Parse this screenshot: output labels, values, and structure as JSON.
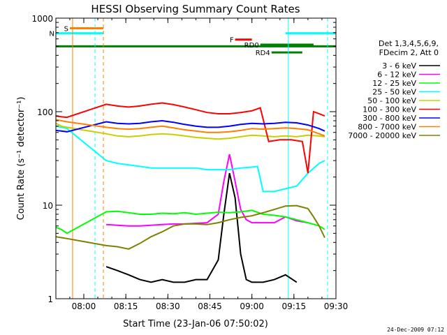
{
  "chart_data": {
    "type": "line",
    "title": "HESSI Observing Summary Count Rates",
    "xlabel": "Start Time (23-Jan-06 07:50:02)",
    "ylabel": "Count Rate (s⁻¹ detector⁻¹)",
    "y_scale": "log",
    "ylim": [
      1,
      1000
    ],
    "xlim": [
      "07:50:02",
      "09:30:00"
    ],
    "x_ticks": [
      "08:00",
      "08:15",
      "08:30",
      "08:45",
      "09:00",
      "09:15",
      "09:30"
    ],
    "y_ticks": [
      "1",
      "10",
      "100",
      "1000"
    ],
    "date_stamp": "24-Dec-2009 07:12",
    "legend": {
      "position": "right",
      "header_line1": "Det 1,3,4,5,6,9,",
      "header_line2": "FDecim 2, Att 0"
    },
    "series": [
      {
        "name": "3 - 6 keV",
        "color": "#000000",
        "x": [
          "08:08",
          "08:12",
          "08:16",
          "08:20",
          "08:24",
          "08:28",
          "08:32",
          "08:36",
          "08:40",
          "08:44",
          "08:48",
          "08:50",
          "08:52",
          "08:54",
          "08:56",
          "08:58",
          "09:00",
          "09:04",
          "09:08",
          "09:12",
          "09:16"
        ],
        "y": [
          2.2,
          2.0,
          1.8,
          1.6,
          1.5,
          1.6,
          1.5,
          1.5,
          1.6,
          1.6,
          2.6,
          8,
          22,
          12,
          3,
          1.6,
          1.5,
          1.5,
          1.6,
          1.8,
          1.5
        ]
      },
      {
        "name": "6 - 12 keV",
        "color": "#ff00ff",
        "x": [
          "08:08",
          "08:12",
          "08:16",
          "08:20",
          "08:24",
          "08:28",
          "08:32",
          "08:36",
          "08:40",
          "08:44",
          "08:48",
          "08:50",
          "08:52",
          "08:54",
          "08:56",
          "08:58",
          "09:00",
          "09:04",
          "09:08",
          "09:12",
          "09:16",
          "09:20"
        ],
        "y": [
          6.2,
          6.1,
          6.0,
          6.0,
          6.1,
          6.2,
          6.3,
          6.3,
          6.4,
          6.5,
          8,
          18,
          35,
          18,
          9,
          7,
          6.5,
          6.5,
          6.5,
          7.5,
          6.8,
          6.5
        ]
      },
      {
        "name": "12 - 25 keV",
        "color": "#00ff00",
        "x": [
          "07:50",
          "07:52",
          "07:54",
          "08:08",
          "08:12",
          "08:16",
          "08:20",
          "08:24",
          "08:28",
          "08:32",
          "08:36",
          "08:40",
          "08:44",
          "08:48",
          "08:52",
          "08:56",
          "09:00",
          "09:04",
          "09:08",
          "09:12",
          "09:16",
          "09:20",
          "09:24",
          "09:26"
        ],
        "y": [
          5.8,
          5.5,
          5.0,
          8.5,
          8.6,
          8.3,
          8.0,
          8.0,
          8.2,
          8.1,
          8.3,
          8.0,
          8.2,
          8.4,
          8.3,
          8.5,
          8.8,
          8.0,
          7.8,
          7.5,
          7.0,
          6.5,
          6.0,
          5.5
        ]
      },
      {
        "name": "25 - 50 keV",
        "color": "#00ffff",
        "x": [
          "07:50",
          "07:52",
          "07:54",
          "08:08",
          "08:12",
          "08:16",
          "08:20",
          "08:24",
          "08:28",
          "08:32",
          "08:36",
          "08:40",
          "08:44",
          "08:48",
          "08:52",
          "08:56",
          "09:00",
          "09:02",
          "09:04",
          "09:08",
          "09:12",
          "09:16",
          "09:20",
          "09:24",
          "09:26"
        ],
        "y": [
          70,
          68,
          66,
          30,
          28,
          27,
          26,
          25,
          25,
          25,
          25,
          25,
          24,
          24,
          24,
          25,
          25.5,
          26,
          14,
          14,
          15,
          16,
          22,
          28,
          30
        ]
      },
      {
        "name": "50 - 100 keV",
        "color": "#cccc00",
        "x": [
          "07:50",
          "07:52",
          "07:54",
          "08:08",
          "08:12",
          "08:16",
          "08:20",
          "08:24",
          "08:28",
          "08:32",
          "08:36",
          "08:40",
          "08:44",
          "08:48",
          "08:52",
          "08:56",
          "09:00",
          "09:04",
          "09:08",
          "09:12",
          "09:16",
          "09:20",
          "09:24",
          "09:26"
        ],
        "y": [
          75,
          70,
          68,
          58,
          55,
          54,
          55,
          57,
          58,
          57,
          55,
          53,
          52,
          51,
          52,
          54,
          56,
          55,
          54,
          55,
          54,
          56,
          55,
          54
        ]
      },
      {
        "name": "100 - 300 keV",
        "color": "#ff0000",
        "x": [
          "07:50",
          "07:52",
          "07:54",
          "08:08",
          "08:12",
          "08:16",
          "08:20",
          "08:24",
          "08:28",
          "08:32",
          "08:36",
          "08:40",
          "08:44",
          "08:48",
          "08:52",
          "08:56",
          "09:00",
          "09:03",
          "09:06",
          "09:10",
          "09:14",
          "09:18",
          "09:20",
          "09:22",
          "09:26"
        ],
        "y": [
          90,
          88,
          87,
          120,
          115,
          112,
          115,
          120,
          124,
          119,
          112,
          105,
          98,
          95,
          95,
          98,
          102,
          110,
          48,
          50,
          50,
          48,
          22,
          100,
          90
        ]
      },
      {
        "name": "300 - 800 keV",
        "color": "#0000ff",
        "x": [
          "07:50",
          "07:52",
          "07:54",
          "08:08",
          "08:12",
          "08:16",
          "08:20",
          "08:24",
          "08:28",
          "08:32",
          "08:36",
          "08:40",
          "08:44",
          "08:48",
          "08:52",
          "08:56",
          "09:00",
          "09:04",
          "09:08",
          "09:12",
          "09:16",
          "09:20",
          "09:24",
          "09:26"
        ],
        "y": [
          63,
          62,
          61,
          78,
          75,
          74,
          75,
          78,
          80,
          77,
          73,
          70,
          68,
          68,
          70,
          73,
          75,
          74,
          75,
          77,
          76,
          72,
          66,
          62
        ]
      },
      {
        "name": "800 - 7000 keV",
        "color": "#ff8000",
        "x": [
          "07:50",
          "07:52",
          "07:54",
          "08:08",
          "08:12",
          "08:16",
          "08:20",
          "08:24",
          "08:28",
          "08:32",
          "08:36",
          "08:40",
          "08:44",
          "08:48",
          "08:52",
          "08:56",
          "09:00",
          "09:04",
          "09:08",
          "09:12",
          "09:16",
          "09:20",
          "09:24",
          "09:26"
        ],
        "y": [
          82,
          80,
          78,
          68,
          66,
          65,
          66,
          68,
          70,
          67,
          64,
          62,
          60,
          60,
          61,
          63,
          66,
          65,
          66,
          67,
          66,
          64,
          58,
          55
        ]
      },
      {
        "name": "7000 - 20000 keV",
        "color": "#808000",
        "x": [
          "07:50",
          "07:52",
          "07:54",
          "08:08",
          "08:12",
          "08:16",
          "08:20",
          "08:24",
          "08:28",
          "08:32",
          "08:36",
          "08:40",
          "08:44",
          "08:48",
          "08:52",
          "08:56",
          "09:00",
          "09:04",
          "09:08",
          "09:12",
          "09:16",
          "09:20",
          "09:22",
          "09:24",
          "09:26"
        ],
        "y": [
          4.6,
          4.5,
          4.4,
          3.7,
          3.6,
          3.4,
          3.9,
          4.6,
          5.2,
          6.0,
          6.3,
          6.3,
          6.2,
          6.5,
          7.0,
          7.4,
          7.7,
          8.3,
          9.0,
          9.8,
          9.9,
          9.2,
          7.5,
          6.0,
          4.5
        ]
      }
    ],
    "state_bars": [
      {
        "label": "S",
        "color": "#ff8000",
        "x0": "07:55",
        "x1": "08:07",
        "y": 780
      },
      {
        "label": "N",
        "color": "#00ffff",
        "x0": "07:50",
        "x1": "08:07",
        "y": 690
      },
      {
        "label": "",
        "color": "#00ffff",
        "x0": "09:12",
        "x1": "09:30",
        "y": 690
      },
      {
        "label": "F",
        "color": "#ff0000",
        "x0": "08:54",
        "x1": "09:00",
        "y": 590
      },
      {
        "label": "",
        "color": "#008000",
        "x0": "07:50",
        "x1": "09:30",
        "y": 500
      },
      {
        "label": "RD0",
        "color": "#008000",
        "x0": "09:03",
        "x1": "09:22",
        "y": 520
      },
      {
        "label": "RD4",
        "color": "#008000",
        "x0": "09:07",
        "x1": "09:18",
        "y": 430
      }
    ],
    "vertical_lines": [
      {
        "x": "07:56",
        "color": "#ff8000",
        "style": "solid"
      },
      {
        "x": "08:04",
        "color": "#00ffff",
        "style": "dashed"
      },
      {
        "x": "08:07",
        "color": "#ff8000",
        "style": "dashed"
      },
      {
        "x": "09:13",
        "color": "#00ffff",
        "style": "solid"
      },
      {
        "x": "09:27",
        "color": "#00ffff",
        "style": "dashed"
      }
    ],
    "grid": false
  }
}
